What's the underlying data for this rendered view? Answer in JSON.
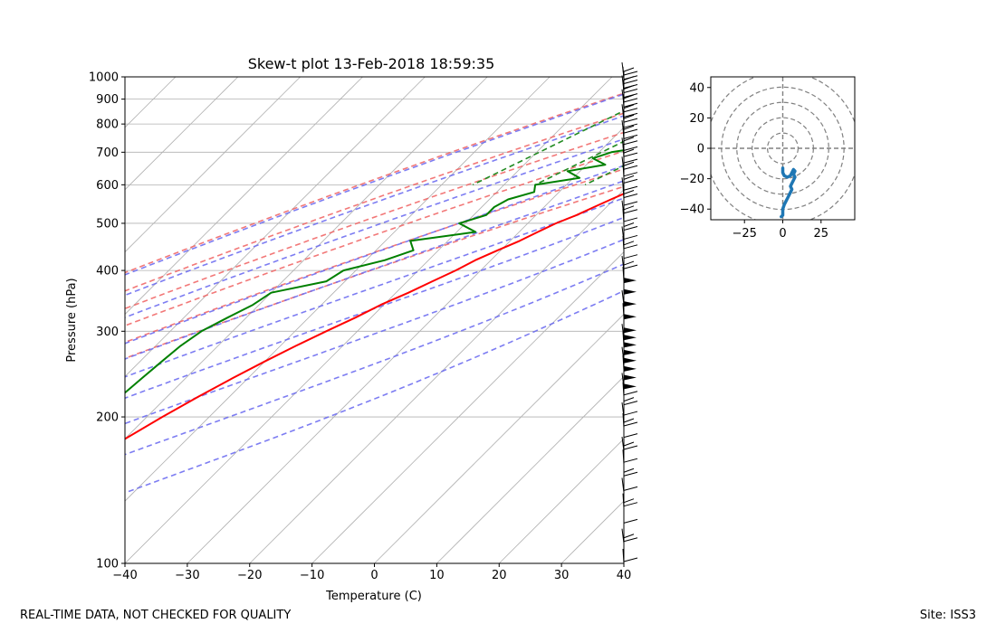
{
  "footer": {
    "left_text": "REAL-TIME DATA, NOT CHECKED FOR QUALITY",
    "right_text": "Site: ISS3"
  },
  "chart_data": [
    {
      "type": "line",
      "subtype": "skew-t",
      "title": "Skew-t plot 13-Feb-2018 18:59:35",
      "xlabel": "Temperature (C)",
      "ylabel": "Pressure (hPa)",
      "xlim": [
        -40,
        40
      ],
      "ylim": [
        1000,
        100
      ],
      "y_scale": "log",
      "x_ticks": [
        -40,
        -30,
        -20,
        -10,
        0,
        10,
        20,
        30,
        40
      ],
      "y_ticks": [
        1000,
        900,
        800,
        700,
        600,
        500,
        400,
        300,
        200,
        100
      ],
      "grid": true,
      "reference_lines": {
        "dry_adiabats_theta_K": [
          243,
          253,
          263,
          273,
          283,
          293
        ],
        "moist_adiabats_start_C": [
          -30,
          -20,
          -10,
          0,
          5,
          10,
          15,
          20,
          25,
          30
        ],
        "mixing_ratio_start_C": [
          -27,
          -17,
          -9,
          -2,
          4,
          10,
          14,
          18,
          22,
          27
        ],
        "colors": {
          "dry": "#f06060",
          "moist": "#6666f0",
          "mixing": "#228b22"
        }
      },
      "series": [
        {
          "role": "temperature",
          "color": "#ff0000",
          "points": [
            [
              980,
              3.5
            ],
            [
              960,
              2
            ],
            [
              940,
              0.5
            ],
            [
              920,
              -0.5
            ],
            [
              900,
              -1.5
            ],
            [
              880,
              -2
            ],
            [
              860,
              -2.5
            ],
            [
              840,
              -3.2
            ],
            [
              820,
              -3.8
            ],
            [
              800,
              -5
            ],
            [
              780,
              -6
            ],
            [
              760,
              -7.5
            ],
            [
              740,
              -8.5
            ],
            [
              720,
              -10
            ],
            [
              700,
              -11.5
            ],
            [
              680,
              -12.5
            ],
            [
              660,
              -14
            ],
            [
              640,
              -15
            ],
            [
              620,
              -16.5
            ],
            [
              600,
              -17.5
            ],
            [
              580,
              -19
            ],
            [
              560,
              -20.5
            ],
            [
              540,
              -22
            ],
            [
              520,
              -23.5
            ],
            [
              500,
              -25.5
            ],
            [
              480,
              -27
            ],
            [
              460,
              -28.5
            ],
            [
              440,
              -30.5
            ],
            [
              420,
              -32.5
            ],
            [
              400,
              -34
            ],
            [
              380,
              -36
            ],
            [
              360,
              -38
            ],
            [
              340,
              -40.5
            ],
            [
              320,
              -42.5
            ],
            [
              300,
              -45
            ],
            [
              280,
              -47.5
            ],
            [
              260,
              -50
            ],
            [
              240,
              -52.5
            ],
            [
              220,
              -55
            ],
            [
              200,
              -57.5
            ],
            [
              180,
              -60
            ],
            [
              160,
              -62.5
            ],
            [
              140,
              -64
            ],
            [
              120,
              -65
            ],
            [
              110,
              -66
            ],
            [
              100,
              -66
            ]
          ]
        },
        {
          "role": "dewpoint",
          "color": "#008000",
          "points": [
            [
              980,
              -1
            ],
            [
              960,
              -3
            ],
            [
              940,
              -4
            ],
            [
              920,
              -5
            ],
            [
              900,
              -6
            ],
            [
              880,
              -7.5
            ],
            [
              860,
              -9
            ],
            [
              840,
              -11
            ],
            [
              820,
              -12
            ],
            [
              800,
              -14
            ],
            [
              780,
              -15
            ],
            [
              760,
              -17
            ],
            [
              740,
              -19
            ],
            [
              720,
              -23
            ],
            [
              700,
              -28
            ],
            [
              680,
              -30
            ],
            [
              660,
              -27
            ],
            [
              640,
              -32
            ],
            [
              620,
              -29
            ],
            [
              600,
              -35
            ],
            [
              580,
              -34
            ],
            [
              560,
              -37
            ],
            [
              540,
              -38
            ],
            [
              520,
              -38
            ],
            [
              500,
              -41
            ],
            [
              480,
              -37
            ],
            [
              460,
              -46
            ],
            [
              440,
              -44
            ],
            [
              420,
              -47
            ],
            [
              400,
              -52
            ],
            [
              380,
              -53
            ],
            [
              360,
              -60
            ],
            [
              340,
              -61
            ],
            [
              320,
              -63
            ],
            [
              300,
              -65
            ],
            [
              280,
              -66
            ],
            [
              260,
              -66.5
            ],
            [
              240,
              -67
            ],
            [
              220,
              -67.5
            ],
            [
              200,
              -68
            ],
            [
              180,
              -69
            ],
            [
              160,
              -70
            ],
            [
              140,
              -72
            ],
            [
              120,
              -75
            ],
            [
              110,
              -77
            ],
            [
              100,
              -78
            ]
          ]
        }
      ],
      "wind_barbs": {
        "pressure_levels": [
          1000,
          980,
          960,
          940,
          920,
          900,
          880,
          860,
          840,
          820,
          800,
          780,
          760,
          740,
          720,
          700,
          680,
          660,
          640,
          620,
          600,
          580,
          560,
          540,
          520,
          500,
          480,
          460,
          440,
          420,
          400,
          380,
          360,
          340,
          320,
          300,
          290,
          280,
          270,
          260,
          250,
          240,
          230,
          220,
          210,
          200,
          190,
          180,
          170,
          160,
          150,
          140,
          130,
          120,
          110,
          100
        ]
      }
    },
    {
      "type": "line",
      "subtype": "hodograph",
      "xlim": [
        -47,
        47
      ],
      "ylim": [
        -47,
        47
      ],
      "x_ticks": [
        -25,
        0,
        25
      ],
      "y_ticks": [
        -40,
        -20,
        0,
        20,
        40
      ],
      "range_rings": [
        10,
        20,
        30,
        40,
        50
      ],
      "color": "#1f77b4",
      "points": [
        [
          -1,
          -45
        ],
        [
          0,
          -44
        ],
        [
          0,
          -40
        ],
        [
          1,
          -37
        ],
        [
          2,
          -35
        ],
        [
          3,
          -33
        ],
        [
          4,
          -31
        ],
        [
          5,
          -29
        ],
        [
          6,
          -27
        ],
        [
          5,
          -25
        ],
        [
          6,
          -23
        ],
        [
          7,
          -21
        ],
        [
          8,
          -19
        ],
        [
          7,
          -17
        ],
        [
          8,
          -15
        ],
        [
          7,
          -14
        ],
        [
          6,
          -16
        ],
        [
          5,
          -18
        ],
        [
          3,
          -19
        ],
        [
          1,
          -18
        ],
        [
          0,
          -16
        ],
        [
          0,
          -13
        ]
      ]
    }
  ]
}
